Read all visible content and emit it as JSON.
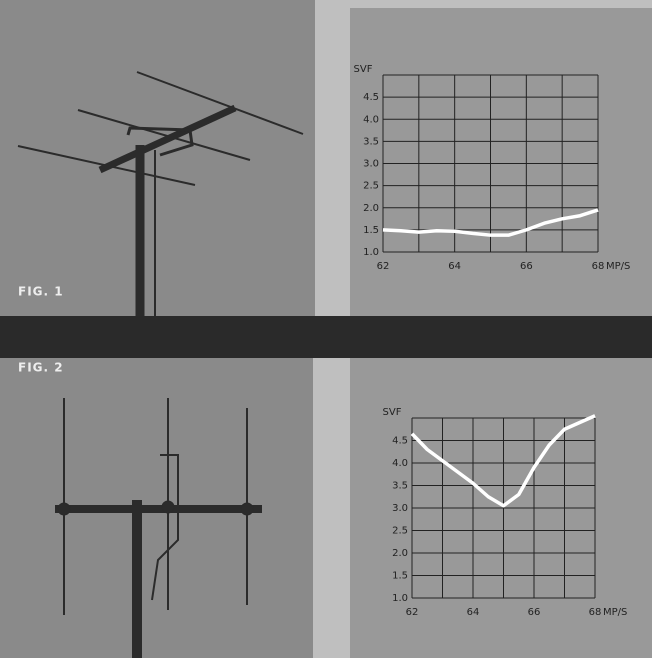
{
  "chart_data": [
    {
      "type": "line",
      "figure_label": "FIG. 1",
      "ylabel": "SVF",
      "xlabel": "MP/S",
      "x": [
        62,
        62.5,
        63,
        63.5,
        64,
        64.5,
        65,
        65.5,
        66,
        66.5,
        67,
        67.5,
        68
      ],
      "series": [
        {
          "color": "#ffffff",
          "values": [
            1.5,
            1.48,
            1.45,
            1.48,
            1.47,
            1.42,
            1.38,
            1.38,
            1.5,
            1.65,
            1.75,
            1.82,
            1.95
          ]
        }
      ],
      "xlim": [
        62,
        68
      ],
      "xticks": [
        62,
        64,
        66,
        68
      ],
      "xminor_ticks": [
        63,
        65,
        67
      ],
      "ylim": [
        1,
        5
      ],
      "yticks": [
        {
          "value": 1,
          "label": "1.0"
        },
        1.5,
        {
          "value": 2,
          "label": "2.0"
        },
        2.5,
        {
          "value": 3,
          "label": "3.0"
        },
        3.5,
        {
          "value": 4,
          "label": "4.0"
        },
        4.5
      ],
      "grid": true
    },
    {
      "type": "line",
      "figure_label": "FIG. 2",
      "ylabel": "SVF",
      "xlabel": "MP/S",
      "x": [
        62,
        62.5,
        63,
        63.5,
        64,
        64.5,
        65,
        65.5,
        66,
        66.5,
        67,
        67.5,
        68
      ],
      "series": [
        {
          "color": "#ffffff",
          "values": [
            4.65,
            4.3,
            4.05,
            3.8,
            3.55,
            3.25,
            3.05,
            3.3,
            3.9,
            4.4,
            4.75,
            4.9,
            5.05
          ]
        }
      ],
      "xlim": [
        62,
        68
      ],
      "xticks": [
        62,
        64,
        66,
        68
      ],
      "xminor_ticks": [
        63,
        65,
        67
      ],
      "ylim": [
        1,
        5
      ],
      "yticks": [
        {
          "value": 1,
          "label": "1.0"
        },
        1.5,
        {
          "value": 2,
          "label": "2.0"
        },
        2.5,
        {
          "value": 3,
          "label": "3.0"
        },
        3.5,
        {
          "value": 4,
          "label": "4.0"
        },
        4.5
      ],
      "grid": true
    }
  ]
}
